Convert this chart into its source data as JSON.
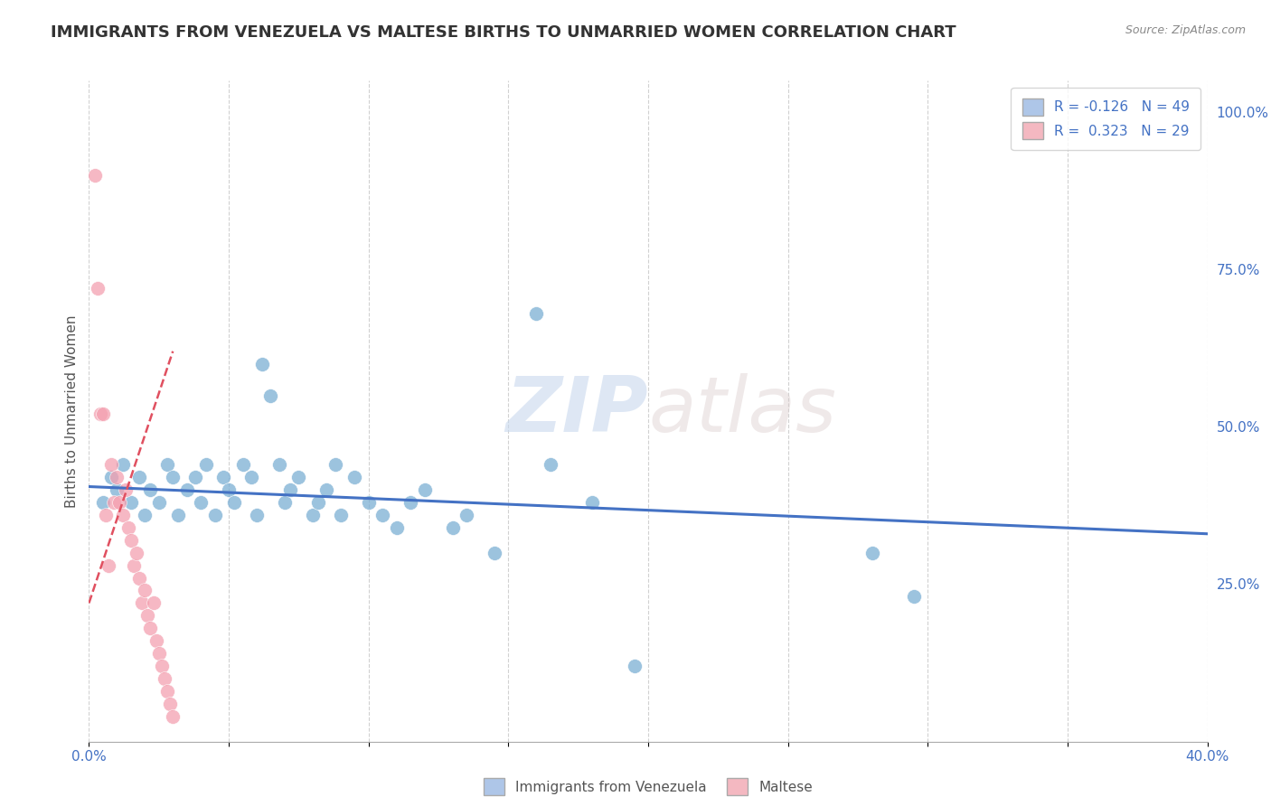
{
  "title": "IMMIGRANTS FROM VENEZUELA VS MALTESE BIRTHS TO UNMARRIED WOMEN CORRELATION CHART",
  "source": "Source: ZipAtlas.com",
  "ylabel": "Births to Unmarried Women",
  "xlim": [
    0.0,
    0.4
  ],
  "ylim": [
    0.0,
    1.05
  ],
  "xticks": [
    0.0,
    0.05,
    0.1,
    0.15,
    0.2,
    0.25,
    0.3,
    0.35,
    0.4
  ],
  "xtick_labels": [
    "0.0%",
    "",
    "",
    "",
    "",
    "",
    "",
    "",
    "40.0%"
  ],
  "yticks_right": [
    0.25,
    0.5,
    0.75,
    1.0
  ],
  "ytick_labels_right": [
    "25.0%",
    "50.0%",
    "75.0%",
    "100.0%"
  ],
  "blue_scatter": [
    [
      0.005,
      0.38
    ],
    [
      0.008,
      0.42
    ],
    [
      0.01,
      0.4
    ],
    [
      0.012,
      0.44
    ],
    [
      0.015,
      0.38
    ],
    [
      0.018,
      0.42
    ],
    [
      0.02,
      0.36
    ],
    [
      0.022,
      0.4
    ],
    [
      0.025,
      0.38
    ],
    [
      0.028,
      0.44
    ],
    [
      0.03,
      0.42
    ],
    [
      0.032,
      0.36
    ],
    [
      0.035,
      0.4
    ],
    [
      0.038,
      0.42
    ],
    [
      0.04,
      0.38
    ],
    [
      0.042,
      0.44
    ],
    [
      0.045,
      0.36
    ],
    [
      0.048,
      0.42
    ],
    [
      0.05,
      0.4
    ],
    [
      0.052,
      0.38
    ],
    [
      0.055,
      0.44
    ],
    [
      0.058,
      0.42
    ],
    [
      0.06,
      0.36
    ],
    [
      0.062,
      0.6
    ],
    [
      0.065,
      0.55
    ],
    [
      0.068,
      0.44
    ],
    [
      0.07,
      0.38
    ],
    [
      0.072,
      0.4
    ],
    [
      0.075,
      0.42
    ],
    [
      0.08,
      0.36
    ],
    [
      0.082,
      0.38
    ],
    [
      0.085,
      0.4
    ],
    [
      0.088,
      0.44
    ],
    [
      0.09,
      0.36
    ],
    [
      0.095,
      0.42
    ],
    [
      0.1,
      0.38
    ],
    [
      0.105,
      0.36
    ],
    [
      0.11,
      0.34
    ],
    [
      0.115,
      0.38
    ],
    [
      0.12,
      0.4
    ],
    [
      0.13,
      0.34
    ],
    [
      0.135,
      0.36
    ],
    [
      0.145,
      0.3
    ],
    [
      0.16,
      0.68
    ],
    [
      0.165,
      0.44
    ],
    [
      0.18,
      0.38
    ],
    [
      0.195,
      0.12
    ],
    [
      0.28,
      0.3
    ],
    [
      0.295,
      0.23
    ]
  ],
  "pink_scatter": [
    [
      0.002,
      0.9
    ],
    [
      0.003,
      0.72
    ],
    [
      0.004,
      0.52
    ],
    [
      0.005,
      0.52
    ],
    [
      0.006,
      0.36
    ],
    [
      0.007,
      0.28
    ],
    [
      0.008,
      0.44
    ],
    [
      0.009,
      0.38
    ],
    [
      0.01,
      0.42
    ],
    [
      0.011,
      0.38
    ],
    [
      0.012,
      0.36
    ],
    [
      0.013,
      0.4
    ],
    [
      0.014,
      0.34
    ],
    [
      0.015,
      0.32
    ],
    [
      0.016,
      0.28
    ],
    [
      0.017,
      0.3
    ],
    [
      0.018,
      0.26
    ],
    [
      0.019,
      0.22
    ],
    [
      0.02,
      0.24
    ],
    [
      0.021,
      0.2
    ],
    [
      0.022,
      0.18
    ],
    [
      0.023,
      0.22
    ],
    [
      0.024,
      0.16
    ],
    [
      0.025,
      0.14
    ],
    [
      0.026,
      0.12
    ],
    [
      0.027,
      0.1
    ],
    [
      0.028,
      0.08
    ],
    [
      0.029,
      0.06
    ],
    [
      0.03,
      0.04
    ]
  ],
  "blue_line_x": [
    0.0,
    0.4
  ],
  "blue_line_y": [
    0.405,
    0.33
  ],
  "pink_line_x": [
    0.0,
    0.03
  ],
  "pink_line_y": [
    0.22,
    0.62
  ],
  "background_color": "#ffffff",
  "grid_color": "#cccccc",
  "title_color": "#333333",
  "blue_color": "#7bafd4",
  "pink_color": "#f4a0b0",
  "blue_line_color": "#4472c4",
  "pink_line_color": "#e05060",
  "legend_top_blue_label": "R = -0.126   N = 49",
  "legend_top_pink_label": "R =  0.323   N = 29",
  "legend_bottom_blue_label": "Immigrants from Venezuela",
  "legend_bottom_pink_label": "Maltese",
  "watermark_zip": "ZIP",
  "watermark_atlas": "atlas"
}
